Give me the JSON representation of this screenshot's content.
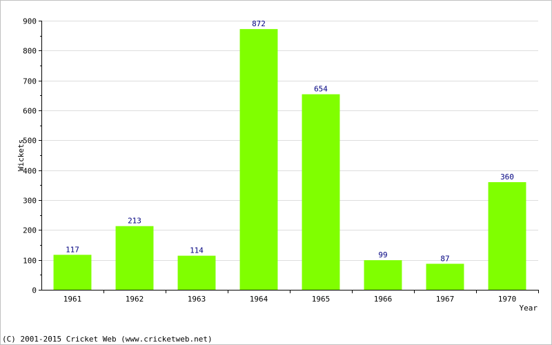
{
  "chart_data": {
    "type": "bar",
    "categories": [
      "1961",
      "1962",
      "1963",
      "1964",
      "1965",
      "1966",
      "1967",
      "1970"
    ],
    "values": [
      117,
      213,
      114,
      872,
      654,
      99,
      87,
      360
    ],
    "title": "",
    "xlabel": "Year",
    "ylabel": "Wickets",
    "ylim": [
      0,
      900
    ],
    "yticks": [
      0,
      100,
      200,
      300,
      400,
      500,
      600,
      700,
      800,
      900
    ],
    "grid": true,
    "bar_color": "#80ff00",
    "data_label_color": "#000080"
  },
  "footer": "(C) 2001-2015 Cricket Web (www.cricketweb.net)"
}
